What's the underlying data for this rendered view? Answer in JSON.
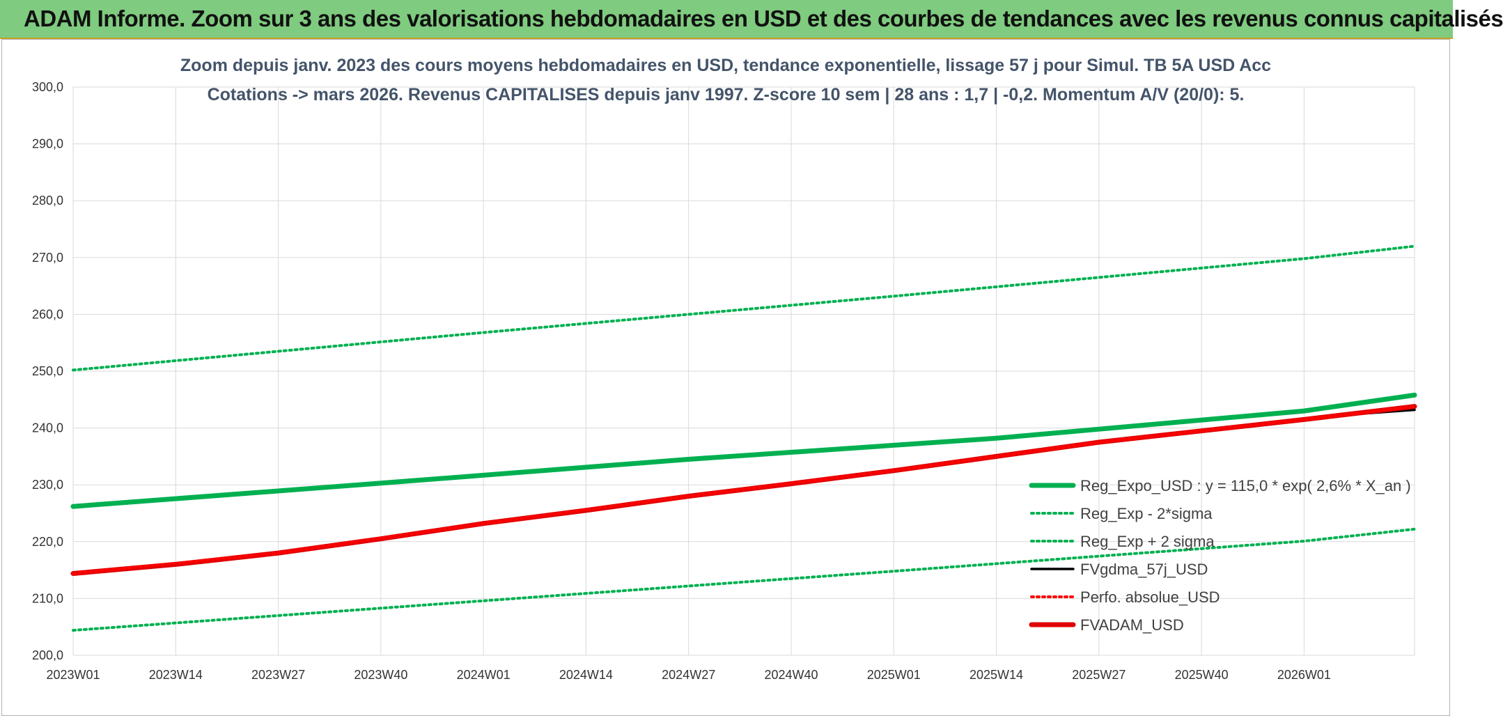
{
  "banner": {
    "title": "ADAM Informe. Zoom sur 3 ans des valorisations hebdomadaires en USD et des courbes de tendances avec les revenus connus capitalisés",
    "background": "#7fcb7f"
  },
  "chart_data": {
    "type": "line",
    "title_line1": "Zoom depuis janv. 2023 des cours moyens hebdomadaires en USD, tendance exponentielle, lissage 57 j pour Simul. TB 5A USD Acc",
    "title_line2": "Cotations -> mars 2026. Revenus CAPITALISES depuis janv 1997. Z-score 10 sem | 28 ans : 1,7 | -0,2. Momentum A/V (20/0): 5.",
    "xlabel": "",
    "ylabel": "",
    "ylim": [
      200,
      300
    ],
    "y_ticks": [
      "200,0",
      "210,0",
      "220,0",
      "230,0",
      "240,0",
      "250,0",
      "260,0",
      "270,0",
      "280,0",
      "290,0",
      "300,0"
    ],
    "x_categories": [
      "2023W01",
      "2023W14",
      "2023W27",
      "2023W40",
      "2024W01",
      "2024W14",
      "2024W27",
      "2024W40",
      "2025W01",
      "2025W14",
      "2025W27",
      "2025W40",
      "2026W01"
    ],
    "x_range_weeks": [
      0,
      170
    ],
    "grid": true,
    "legend_position": "bottom-right",
    "series": [
      {
        "name": "Reg_Expo_USD : y = 115,0 * exp( 2,6% *  X_an )",
        "color": "#00b050",
        "style": "solid",
        "width": "thick",
        "points": [
          [
            0,
            226.2
          ],
          [
            39,
            230.3
          ],
          [
            78,
            234.5
          ],
          [
            117,
            238.2
          ],
          [
            156,
            243.0
          ],
          [
            170,
            245.8
          ]
        ]
      },
      {
        "name": "Reg_Exp - 2*sigma",
        "color": "#00b050",
        "style": "dotted",
        "width": "thin",
        "points": [
          [
            0,
            204.4
          ],
          [
            52,
            209.6
          ],
          [
            104,
            214.8
          ],
          [
            156,
            220.1
          ],
          [
            170,
            222.2
          ]
        ]
      },
      {
        "name": "Reg_Exp + 2 sigma",
        "color": "#00b050",
        "style": "dotted",
        "width": "thin",
        "points": [
          [
            0,
            250.2
          ],
          [
            52,
            256.8
          ],
          [
            104,
            263.2
          ],
          [
            156,
            269.8
          ],
          [
            170,
            272.0
          ]
        ]
      },
      {
        "name": "FVgdma_57j_USD",
        "color": "#000000",
        "style": "solid",
        "width": "medium",
        "points": [
          [
            0,
            214.4
          ],
          [
            26,
            218.0
          ],
          [
            52,
            223.2
          ],
          [
            78,
            228.0
          ],
          [
            104,
            232.5
          ],
          [
            130,
            237.5
          ],
          [
            156,
            241.5
          ],
          [
            163,
            242.5
          ],
          [
            170,
            243.2
          ]
        ]
      },
      {
        "name": "Perfo. absolue_USD",
        "color": "#ff0000",
        "style": "dotted",
        "width": "thin",
        "points": [
          [
            0,
            214.4
          ],
          [
            26,
            218.0
          ],
          [
            52,
            223.2
          ],
          [
            78,
            228.0
          ],
          [
            104,
            232.5
          ],
          [
            130,
            237.5
          ],
          [
            156,
            241.5
          ],
          [
            170,
            243.8
          ]
        ]
      },
      {
        "name": "FVADAM_USD",
        "color": "#e00000",
        "style": "solid",
        "width": "thick",
        "points": [
          [
            0,
            214.4
          ],
          [
            13,
            216.0
          ],
          [
            26,
            218.0
          ],
          [
            39,
            220.5
          ],
          [
            52,
            223.2
          ],
          [
            65,
            225.5
          ],
          [
            78,
            228.0
          ],
          [
            91,
            230.2
          ],
          [
            104,
            232.5
          ],
          [
            117,
            235.0
          ],
          [
            130,
            237.5
          ],
          [
            143,
            239.5
          ],
          [
            156,
            241.5
          ],
          [
            170,
            243.8
          ]
        ]
      }
    ]
  }
}
